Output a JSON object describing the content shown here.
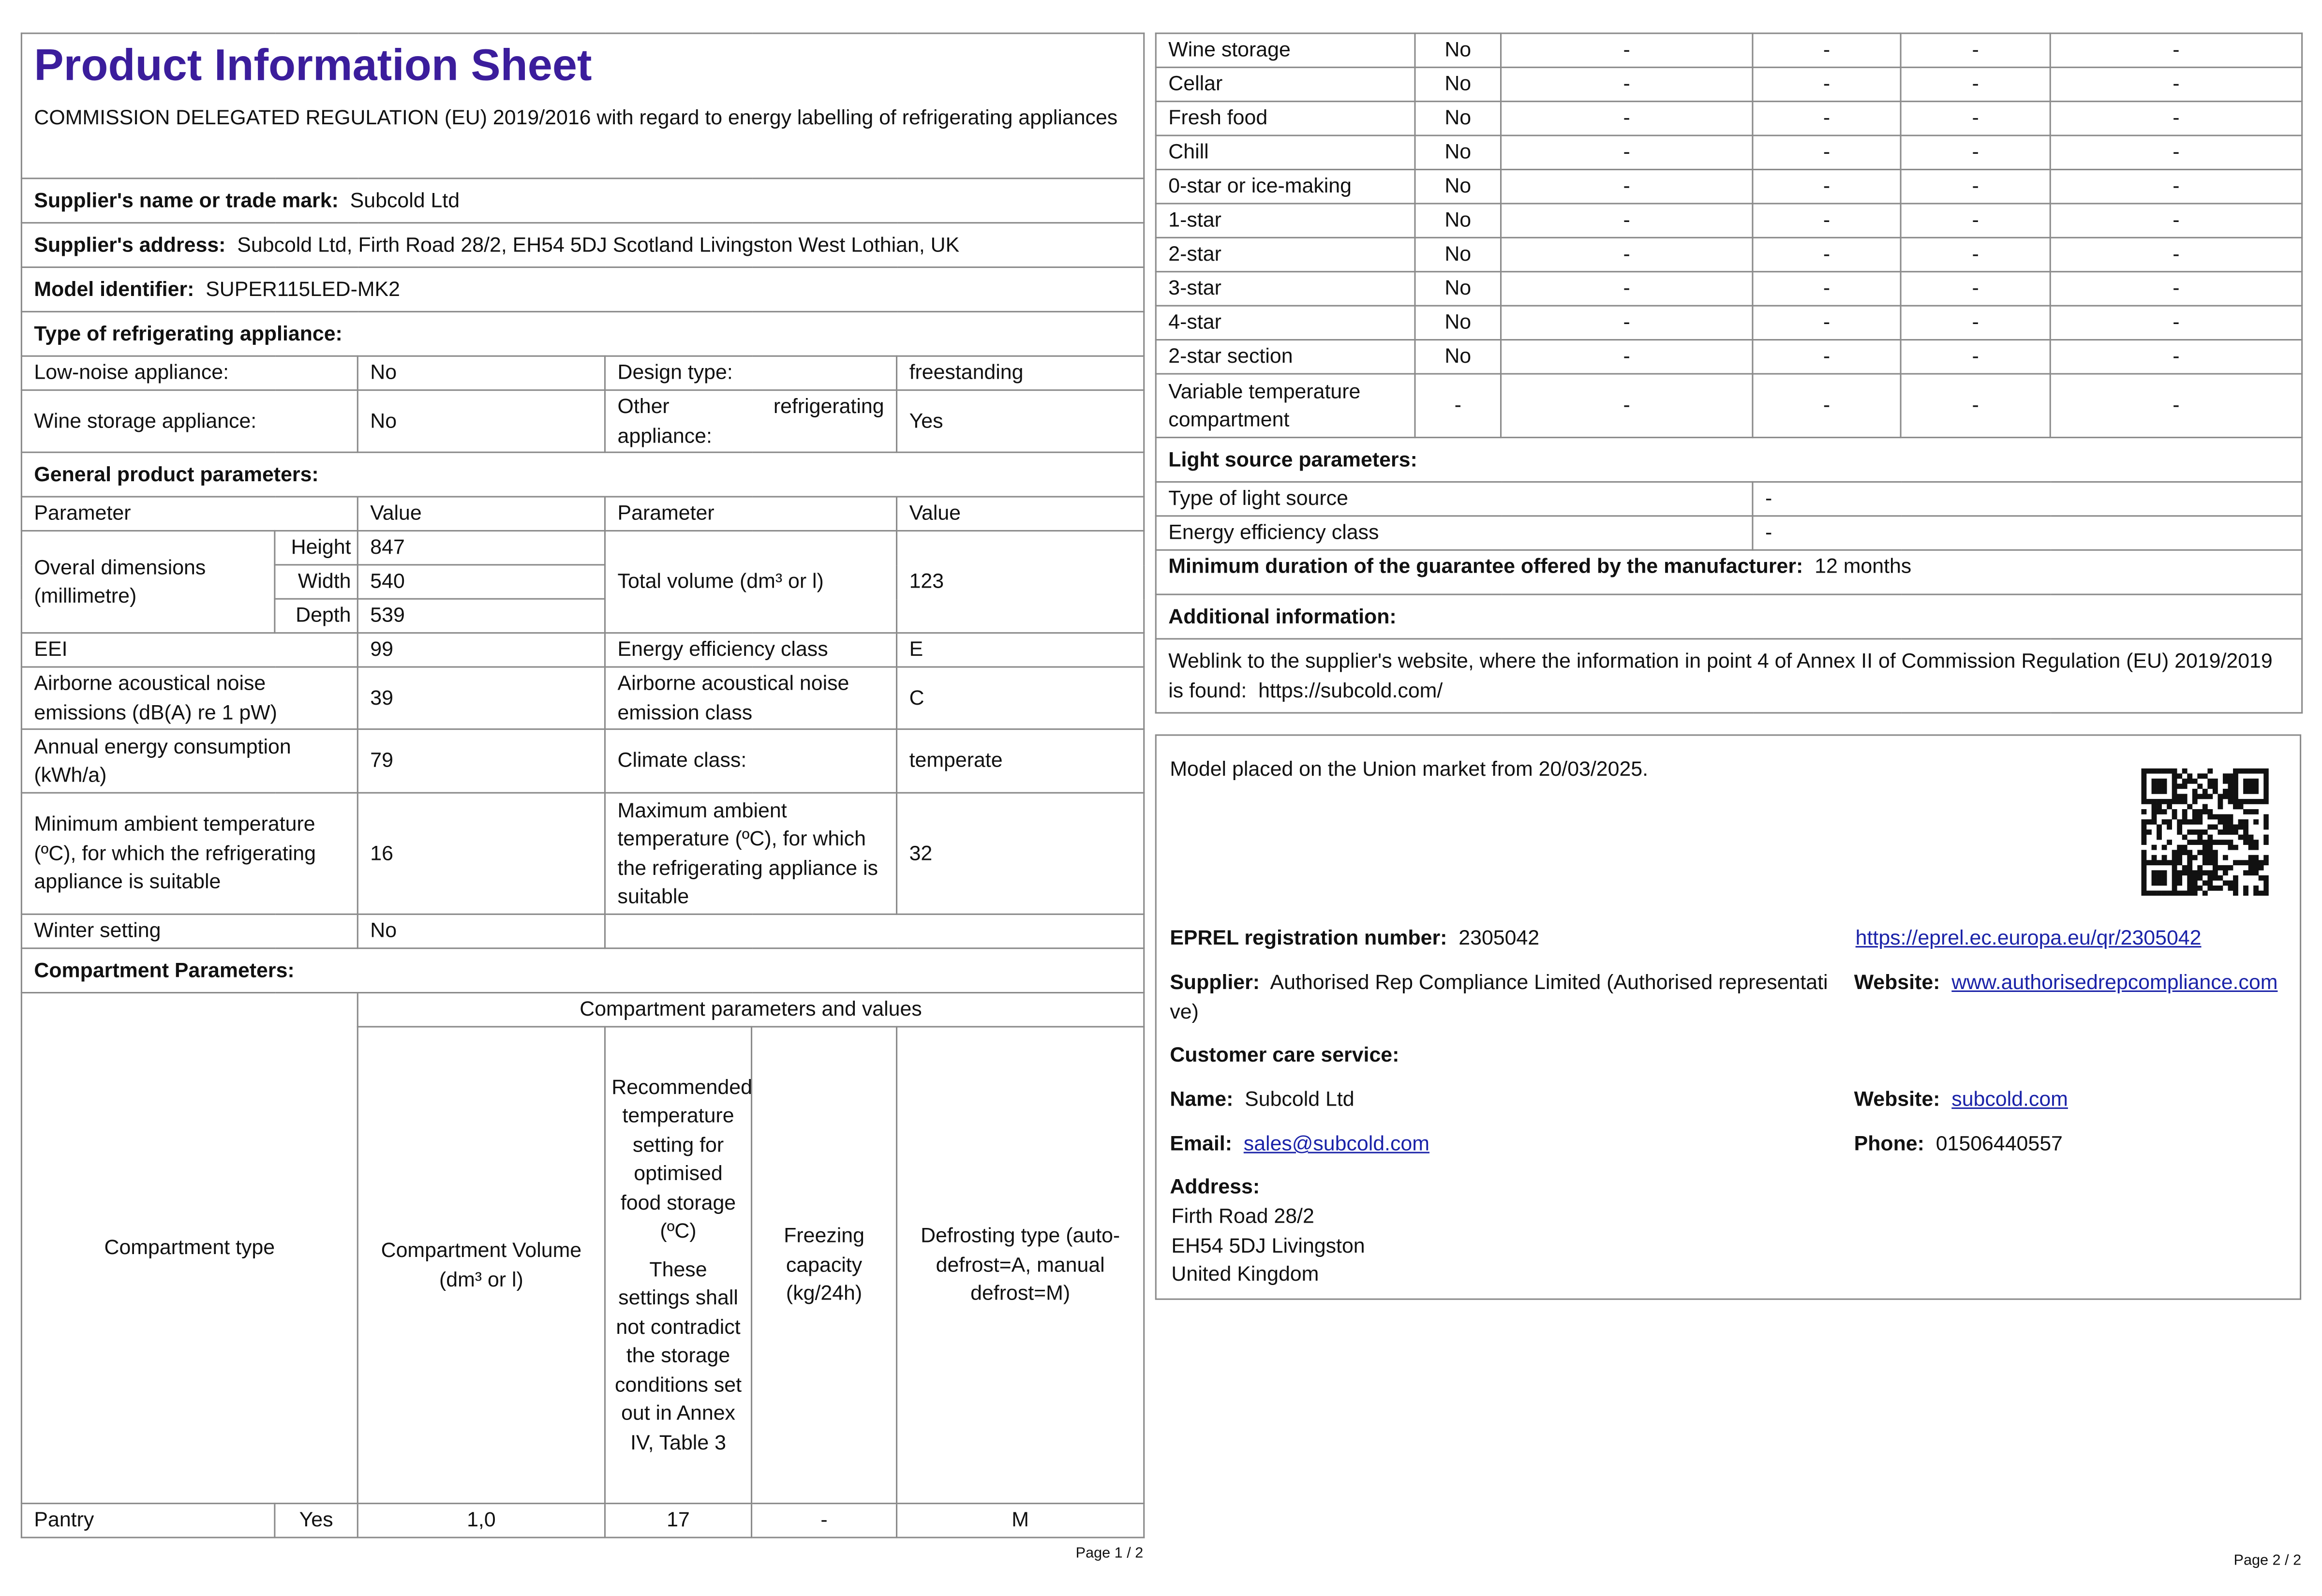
{
  "left": {
    "title": "Product Information Sheet",
    "regulation": "COMMISSION DELEGATED REGULATION (EU) 2019/2016 with regard to energy labelling of refrigerating appliances",
    "supplier_name": {
      "label": "Supplier's name or trade mark:",
      "value": "Subcold Ltd"
    },
    "supplier_address": {
      "label": "Supplier's address:",
      "value": "Subcold Ltd, Firth Road 28/2, EH54 5DJ Scotland Livingston West Lothian, UK"
    },
    "model_identifier": {
      "label": "Model identifier:",
      "value": "SUPER115LED-MK2"
    },
    "type_heading": "Type of refrigerating appliance:",
    "type_rows": [
      [
        "Low-noise appliance:",
        "No",
        "Design type:",
        "freestanding"
      ],
      [
        "Wine storage appliance:",
        "No",
        "Other refrigerating appliance:",
        "Yes"
      ]
    ],
    "general_heading": "General product parameters:",
    "general_header": [
      "Parameter",
      "Value",
      "Parameter",
      "Value"
    ],
    "dimensions": {
      "label": "Overal dimensions (millimetre)",
      "rows": [
        [
          "Height",
          "847"
        ],
        [
          "Width",
          "540"
        ],
        [
          "Depth",
          "539"
        ]
      ],
      "volume_label": "Total volume (dm³ or l)",
      "volume_value": "123"
    },
    "general_rows": [
      [
        "EEI",
        "99",
        "Energy efficiency class",
        "E"
      ],
      [
        "Airborne acoustical noise emissions (dB(A) re 1 pW)",
        "39",
        "Airborne acoustical noise emission class",
        "C"
      ],
      [
        "Annual energy consumption (kWh/a)",
        "79",
        "Climate class:",
        "temperate"
      ],
      [
        "Minimum ambient temperature (ºC), for which the refrigerating appliance is suitable",
        "16",
        "Maximum ambient temperature (ºC), for which the refrigerating appliance is suitable",
        "32"
      ]
    ],
    "winter_setting": [
      "Winter setting",
      "No"
    ],
    "compartment_heading": "Compartment Parameters:",
    "compartment_header": {
      "type": "Compartment type",
      "group": "Compartment parameters and values",
      "volume": "Compartment Volume (dm³ or l)",
      "temperature": "Recommended temperature setting for optimised food storage (ºC)",
      "temperature_note": "These settings shall not contradict the storage conditions set out in Annex IV, Table 3",
      "freezing": "Freezing capacity (kg/24h)",
      "defrosting": "Defrosting type (auto-defrost=A, manual defrost=M)"
    },
    "compartment_rows": [
      [
        "Pantry",
        "Yes",
        "1,0",
        "17",
        "-",
        "M"
      ]
    ],
    "footer": "Page 1 / 2"
  },
  "right": {
    "compartments": [
      [
        "Wine storage",
        "No",
        "-",
        "-",
        "-",
        "-"
      ],
      [
        "Cellar",
        "No",
        "-",
        "-",
        "-",
        "-"
      ],
      [
        "Fresh food",
        "No",
        "-",
        "-",
        "-",
        "-"
      ],
      [
        "Chill",
        "No",
        "-",
        "-",
        "-",
        "-"
      ],
      [
        "0-star or ice-making",
        "No",
        "-",
        "-",
        "-",
        "-"
      ],
      [
        "1-star",
        "No",
        "-",
        "-",
        "-",
        "-"
      ],
      [
        "2-star",
        "No",
        "-",
        "-",
        "-",
        "-"
      ],
      [
        "3-star",
        "No",
        "-",
        "-",
        "-",
        "-"
      ],
      [
        "4-star",
        "No",
        "-",
        "-",
        "-",
        "-"
      ],
      [
        "2-star section",
        "No",
        "-",
        "-",
        "-",
        "-"
      ],
      [
        "Variable temperature compartment",
        "-",
        "-",
        "-",
        "-",
        "-"
      ]
    ],
    "light_heading": "Light source parameters:",
    "light_rows": [
      [
        "Type of light source",
        "-"
      ],
      [
        "Energy efficiency class",
        "-"
      ]
    ],
    "guarantee": {
      "label": "Minimum duration of the guarantee offered by the manufacturer:",
      "value": "12 months"
    },
    "additional_heading": "Additional information:",
    "weblink": {
      "text": "Weblink to the supplier's website, where the information in point 4 of Annex II of Commission Regulation (EU) 2019/2019 is found:",
      "url": "https://subcold.com/"
    },
    "market_date": "Model placed on the Union market from 20/03/2025.",
    "eprel": {
      "label": "EPREL registration number:",
      "value": "2305042",
      "link": "https://eprel.ec.europa.eu/qr/2305042"
    },
    "supplier": {
      "label": "Supplier:",
      "value": "Authorised Rep Compliance Limited (Authorised representative)"
    },
    "supplier_website": {
      "label": "Website:",
      "value": "www.authorisedrepcompliance.com"
    },
    "customer_care_heading": "Customer care service:",
    "name": {
      "label": "Name:",
      "value": "Subcold Ltd"
    },
    "website": {
      "label": "Website:",
      "value": "subcold.com"
    },
    "email": {
      "label": "Email:",
      "value": "sales@subcold.com"
    },
    "phone": {
      "label": "Phone:",
      "value": "01506440557"
    },
    "address": {
      "label": "Address:",
      "lines": [
        "Firth Road 28/2",
        "EH54 5DJ Livingston",
        "United Kingdom"
      ]
    },
    "footer": "Page 2 / 2"
  }
}
